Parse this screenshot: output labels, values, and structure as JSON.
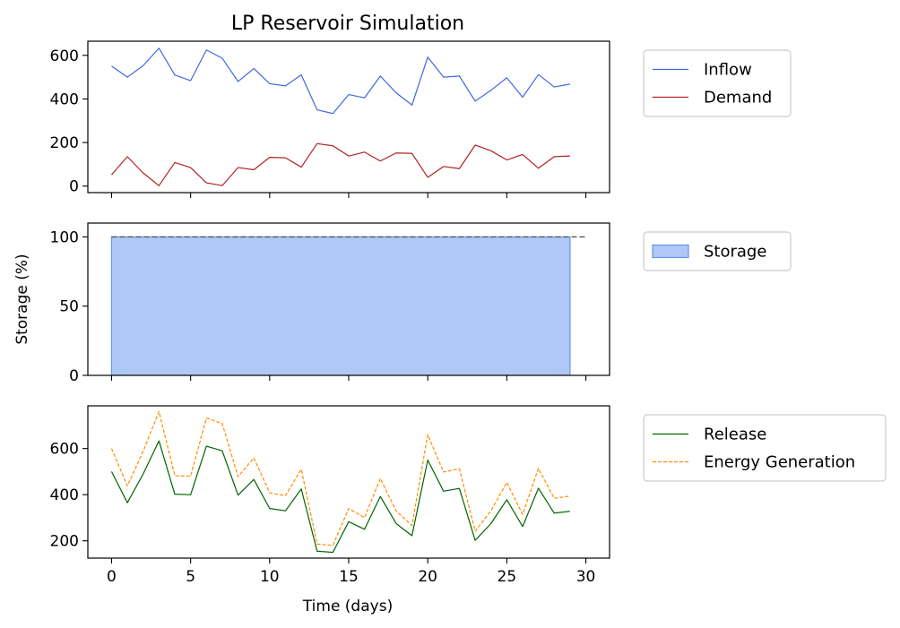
{
  "chart_data": {
    "type": "line",
    "title": "LP Reservoir Simulation",
    "xlabel": "Time (days)",
    "x": [
      0,
      1,
      2,
      3,
      4,
      5,
      6,
      7,
      8,
      9,
      10,
      11,
      12,
      13,
      14,
      15,
      16,
      17,
      18,
      19,
      20,
      21,
      22,
      23,
      24,
      25,
      26,
      27,
      28,
      29
    ],
    "xlim": [
      -1.5,
      31.5
    ],
    "xticks": [
      0,
      5,
      10,
      15,
      20,
      25,
      30
    ],
    "xtick_labels": [
      "0",
      "5",
      "10",
      "15",
      "20",
      "25",
      "30"
    ],
    "panels": [
      {
        "id": "flows",
        "ylabel": "",
        "ylim": [
          -30,
          665
        ],
        "yticks": [
          0,
          200,
          400,
          600
        ],
        "ytick_labels": [
          "0",
          "200",
          "400",
          "600"
        ],
        "legend_position": "outside-right-top",
        "series": [
          {
            "name": "Inflow",
            "color": "#4169e1",
            "style": "solid",
            "values": [
              551,
              500,
              553,
              633,
              510,
              484,
              625,
              587,
              480,
              540,
              470,
              460,
              511,
              350,
              333,
              420,
              405,
              505,
              428,
              372,
              592,
              500,
              505,
              390,
              440,
              497,
              408,
              512,
              455,
              468
            ]
          },
          {
            "name": "Demand",
            "color": "#b22222",
            "style": "solid",
            "values": [
              52,
              135,
              60,
              2,
              108,
              85,
              15,
              2,
              85,
              75,
              132,
              130,
              87,
              195,
              185,
              138,
              156,
              115,
              152,
              150,
              40,
              90,
              80,
              188,
              162,
              120,
              145,
              82,
              135,
              138
            ]
          }
        ]
      },
      {
        "id": "storage",
        "ylabel": "Storage (%)",
        "ylim": [
          0,
          110
        ],
        "yticks": [
          0,
          50,
          100
        ],
        "ytick_labels": [
          "0",
          "50",
          "100"
        ],
        "legend_position": "outside-right-top",
        "reference_line": {
          "y": 100,
          "color": "#555555",
          "style": "dashed",
          "x_from": 0,
          "x_to": 30
        },
        "series": [
          {
            "name": "Storage",
            "type": "area",
            "color": "#6495ed",
            "fill": "#b0c8f5",
            "style": "solid",
            "values": [
              100,
              100,
              100,
              100,
              100,
              100,
              100,
              100,
              100,
              100,
              100,
              100,
              100,
              100,
              100,
              100,
              100,
              100,
              100,
              100,
              100,
              100,
              100,
              100,
              100,
              100,
              100,
              100,
              100,
              100
            ]
          }
        ]
      },
      {
        "id": "generation",
        "ylabel": "",
        "ylim": [
          125,
          785
        ],
        "yticks": [
          200,
          400,
          600
        ],
        "ytick_labels": [
          "200",
          "400",
          "600"
        ],
        "legend_position": "outside-right-top",
        "series": [
          {
            "name": "Release",
            "color": "#006400",
            "style": "solid",
            "values": [
              500,
              365,
              490,
              633,
              402,
              400,
              610,
              590,
              398,
              466,
              340,
              330,
              425,
              155,
              150,
              283,
              250,
              392,
              275,
              222,
              550,
              415,
              427,
              202,
              275,
              378,
              262,
              428,
              320,
              328
            ]
          },
          {
            "name": "Energy Generation",
            "color": "#ff8c00",
            "style": "dashed",
            "values": [
              600,
              438,
              588,
              760,
              482,
              480,
              732,
              708,
              478,
              559,
              408,
              396,
              510,
              186,
              180,
              340,
              300,
              470,
              330,
              266,
              660,
              498,
              512,
              242,
              330,
              453,
              314,
              514,
              384,
              394
            ]
          }
        ]
      }
    ]
  }
}
